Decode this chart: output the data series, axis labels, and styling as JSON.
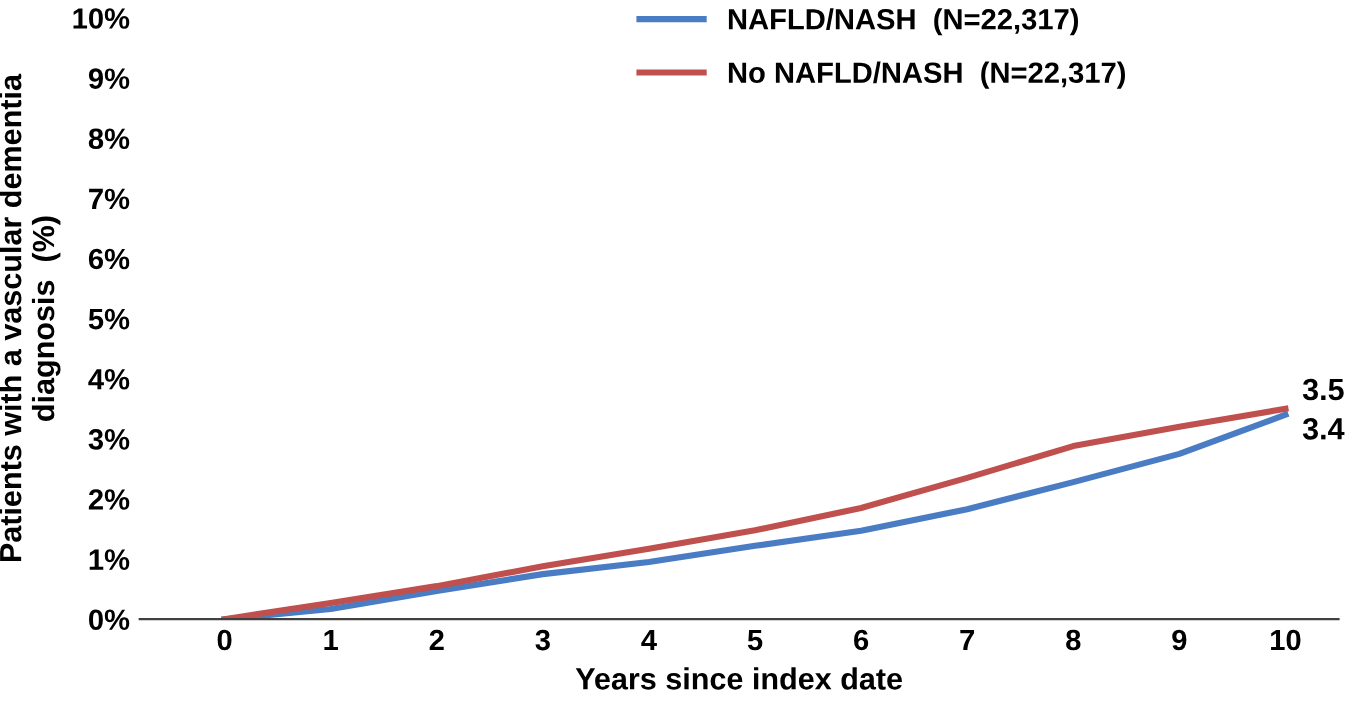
{
  "chart_data": {
    "type": "line",
    "x": [
      0,
      1,
      2,
      3,
      4,
      5,
      6,
      7,
      8,
      9,
      10
    ],
    "xlabel": "Years since index date",
    "ylabel": "Patients with a vascular dementia\ndiagnosis  (%)",
    "xlim": [
      -0.8,
      10.5
    ],
    "xticks": [
      0,
      1,
      2,
      3,
      4,
      5,
      6,
      7,
      8,
      9,
      10
    ],
    "ylim": [
      0,
      10
    ],
    "yticks": [
      {
        "value": 0,
        "label": "0%"
      },
      {
        "value": 1,
        "label": "1%"
      },
      {
        "value": 2,
        "label": "2%"
      },
      {
        "value": 3,
        "label": "3%"
      },
      {
        "value": 4,
        "label": "4%"
      },
      {
        "value": 5,
        "label": "5%"
      },
      {
        "value": 6,
        "label": "6%"
      },
      {
        "value": 7,
        "label": "7%"
      },
      {
        "value": 8,
        "label": "8%"
      },
      {
        "value": 9,
        "label": "9%"
      },
      {
        "value": 10,
        "label": "10%"
      }
    ],
    "grid": false,
    "legend": "top",
    "marker": "none",
    "line_style": "solid",
    "series": [
      {
        "name": "NAFLD/NASH  (N=22,317)",
        "color": "#4a7cc4",
        "values": [
          0,
          0.17,
          0.47,
          0.75,
          0.95,
          1.22,
          1.47,
          1.83,
          2.28,
          2.75,
          3.4
        ],
        "value_labels": [
          null,
          null,
          null,
          null,
          null,
          null,
          null,
          null,
          null,
          null,
          "3.4"
        ]
      },
      {
        "name": "No NAFLD/NASH  (N=22,317)",
        "color": "#c0504d",
        "values": [
          0,
          0.27,
          0.55,
          0.88,
          1.17,
          1.48,
          1.85,
          2.35,
          2.88,
          3.2,
          3.5
        ],
        "value_labels": [
          null,
          null,
          null,
          null,
          null,
          null,
          null,
          null,
          null,
          null,
          "3.5"
        ]
      }
    ]
  }
}
